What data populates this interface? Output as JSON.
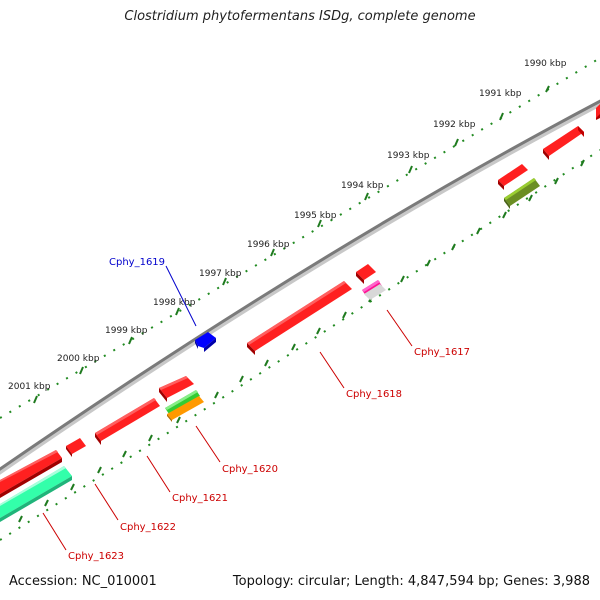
{
  "title": "Clostridium phytofermentans ISDg, complete genome",
  "footer": {
    "accession": "Accession: NC_010001",
    "summary": "Topology: circular; Length: 4,847,594 bp; Genes: 3,988"
  },
  "scale_labels": [
    "1990 kbp",
    "1991 kbp",
    "1992 kbp",
    "1993 kbp",
    "1994 kbp",
    "1995 kbp",
    "1996 kbp",
    "1997 kbp",
    "1998 kbp",
    "1999 kbp",
    "2000 kbp",
    "2001 kbp"
  ],
  "gene_labels": [
    {
      "text": "Cphy_1617",
      "color": "#cc0000"
    },
    {
      "text": "Cphy_1618",
      "color": "#cc0000"
    },
    {
      "text": "Cphy_1619",
      "color": "#0000cc"
    },
    {
      "text": "Cphy_1620",
      "color": "#cc0000"
    },
    {
      "text": "Cphy_1621",
      "color": "#cc0000"
    },
    {
      "text": "Cphy_1622",
      "color": "#cc0000"
    },
    {
      "text": "Cphy_1623",
      "color": "#cc0000"
    }
  ],
  "colors": {
    "forward_gene": "#ff0000",
    "reverse_gene": "#ff0000",
    "cphy_1619": "#0000ff",
    "backbone": "#808080",
    "ticks": "#228b22",
    "tRNA_green": "#33cc33",
    "tRNA_orange": "#ff9900",
    "olive": "#6b8e23",
    "aqua": "#33ffaa",
    "magenta": "#ff1493"
  }
}
